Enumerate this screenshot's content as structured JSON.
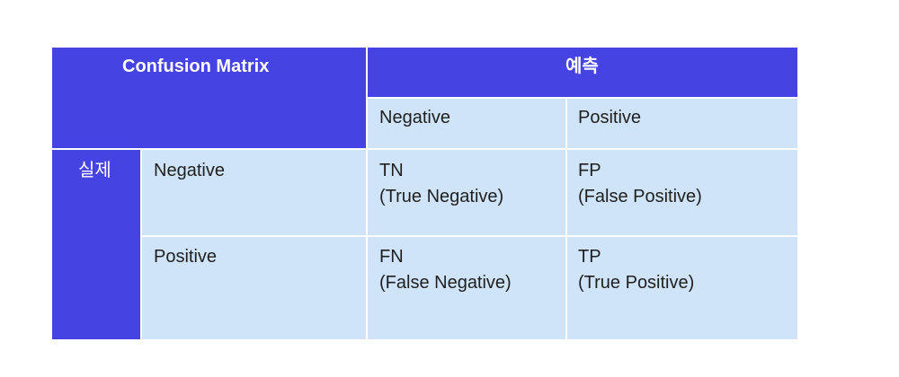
{
  "matrix": {
    "title": "Confusion Matrix",
    "predicted_label": "예측",
    "actual_label": "실제",
    "columns": [
      "Negative",
      "Positive"
    ],
    "rows": [
      {
        "label": "Negative",
        "cells": [
          {
            "abbr": "TN",
            "full": "(True Negative)"
          },
          {
            "abbr": "FP",
            "full": "(False Positive)"
          }
        ]
      },
      {
        "label": "Positive",
        "cells": [
          {
            "abbr": "FN",
            "full": "(False Negative)"
          },
          {
            "abbr": "TP",
            "full": "(True Positive)"
          }
        ]
      }
    ]
  },
  "colors": {
    "header_blue": "#4643e3",
    "cell_light_blue": "#cfe4f8",
    "background": "#ffffff"
  }
}
